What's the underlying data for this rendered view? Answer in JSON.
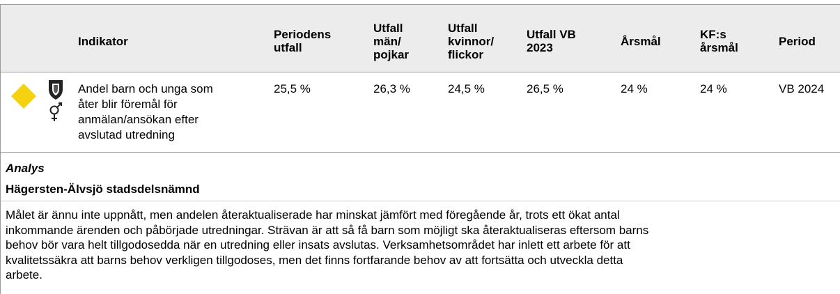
{
  "table": {
    "columns": [
      [
        "Indikator"
      ],
      [
        "Periodens",
        "utfall"
      ],
      [
        "Utfall",
        "män/",
        "pojkar"
      ],
      [
        "Utfall",
        "kvinnor/",
        "flickor"
      ],
      [
        "Utfall VB",
        "2023"
      ],
      [
        "Årsmål"
      ],
      [
        "KF:s",
        "årsmål"
      ],
      [
        "Period"
      ]
    ],
    "row": {
      "indicator": [
        "Andel barn och unga som",
        "åter blir föremål för",
        "anmälan/ansökan efter",
        "avslutad utredning"
      ],
      "cells": [
        "25,5 %",
        "26,3 %",
        "24,5 %",
        "26,5 %",
        "24 %",
        "24 %",
        "VB 2024"
      ]
    }
  },
  "analysis": {
    "heading": "Analys",
    "unit": "Hägersten-Älvsjö stadsdelsnämnd",
    "lines": [
      "Målet är ännu inte uppnått, men andelen återaktualiserade har minskat jämfört med föregående år, trots ett ökat antal",
      "inkommande ärenden och påbörjade utredningar. Strävan är att så få barn som möjligt ska återaktualiseras eftersom barns",
      "behov bör vara helt tillgodosedda när en utredning eller insats avslutas. Verksamhetsområdet har inlett ett arbete för att",
      "kvalitetssäkra att barns behov verkligen tillgodoses, men det finns fortfarande behov av att fortsätta och utveckla detta",
      "arbete."
    ]
  }
}
